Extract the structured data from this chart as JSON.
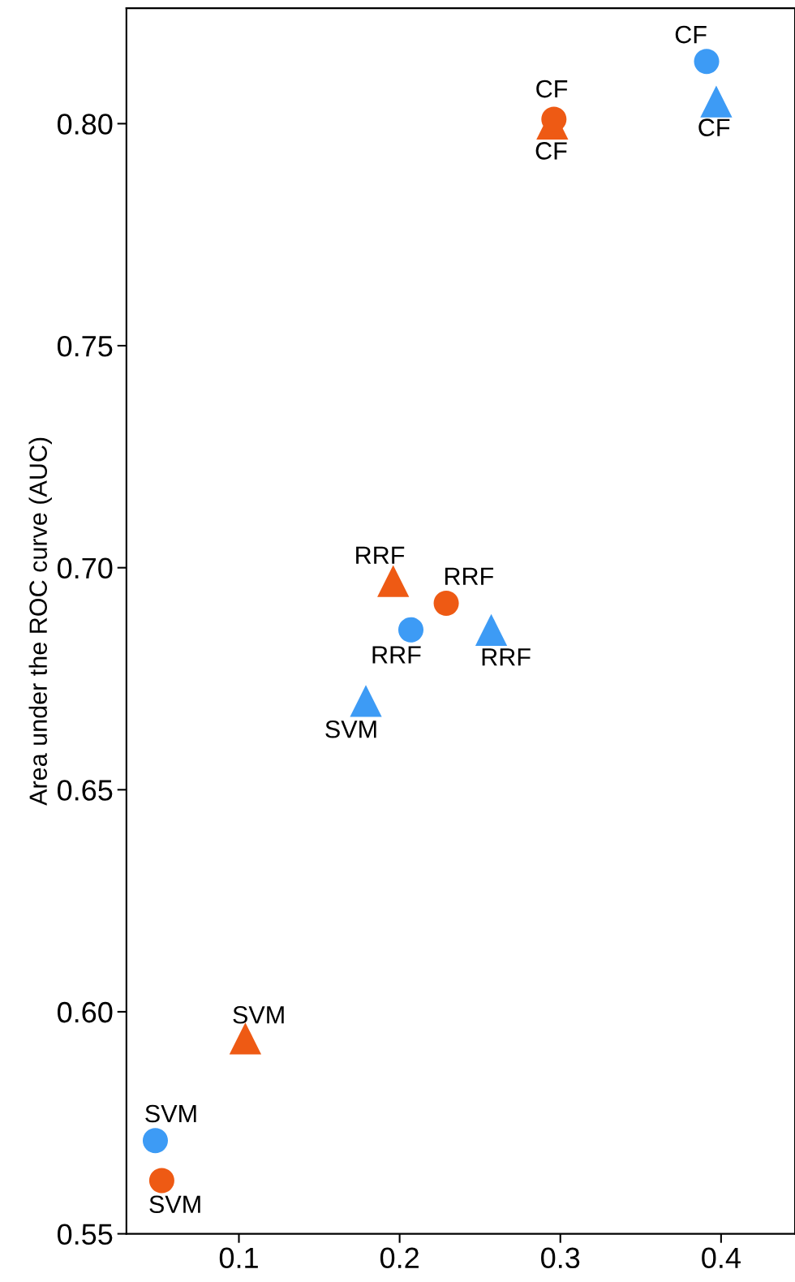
{
  "chart_data": {
    "type": "scatter",
    "ylabel": "Area under the ROC curve (AUC)",
    "xlim": [
      0.03,
      0.446
    ],
    "ylim": [
      0.55,
      0.826
    ],
    "xticks": [
      0.1,
      0.2,
      0.3,
      0.4
    ],
    "yticks": [
      {
        "value": 0.55,
        "label": "0.55"
      },
      {
        "value": 0.6,
        "label": "0.60"
      },
      {
        "value": 0.65,
        "label": "0.65"
      },
      {
        "value": 0.7,
        "label": "0.70"
      },
      {
        "value": 0.75,
        "label": "0.75"
      },
      {
        "value": 0.8,
        "label": "0.80"
      }
    ],
    "grid": false,
    "series": [
      {
        "color": "#3d9bf5",
        "marker": "circle",
        "x": [
          0.391,
          0.207,
          0.048
        ],
        "values": [
          0.814,
          0.686,
          0.571
        ]
      },
      {
        "color": "#3d9bf5",
        "marker": "triangle",
        "x": [
          0.397,
          0.257,
          0.179
        ],
        "values": [
          0.805,
          0.686,
          0.67
        ]
      },
      {
        "color": "#ee5a14",
        "marker": "circle",
        "x": [
          0.296,
          0.229,
          0.052
        ],
        "values": [
          0.801,
          0.692,
          0.562
        ]
      },
      {
        "color": "#ee5a14",
        "marker": "triangle",
        "x": [
          0.295,
          0.196,
          0.104
        ],
        "values": [
          0.8,
          0.697,
          0.594
        ]
      }
    ],
    "annotations": [
      {
        "text": "CF",
        "x": 0.391,
        "y": 0.814
      },
      {
        "text": "CF",
        "x": 0.397,
        "y": 0.805
      },
      {
        "text": "CF",
        "x": 0.296,
        "y": 0.801
      },
      {
        "text": "CF",
        "x": 0.295,
        "y": 0.8
      },
      {
        "text": "RRF",
        "x": 0.196,
        "y": 0.697
      },
      {
        "text": "RRF",
        "x": 0.229,
        "y": 0.692
      },
      {
        "text": "RRF",
        "x": 0.207,
        "y": 0.686
      },
      {
        "text": "RRF",
        "x": 0.257,
        "y": 0.686
      },
      {
        "text": "SVM",
        "x": 0.179,
        "y": 0.67
      },
      {
        "text": "SVM",
        "x": 0.104,
        "y": 0.594
      },
      {
        "text": "SVM",
        "x": 0.048,
        "y": 0.571
      },
      {
        "text": "SVM",
        "x": 0.052,
        "y": 0.562
      }
    ]
  }
}
